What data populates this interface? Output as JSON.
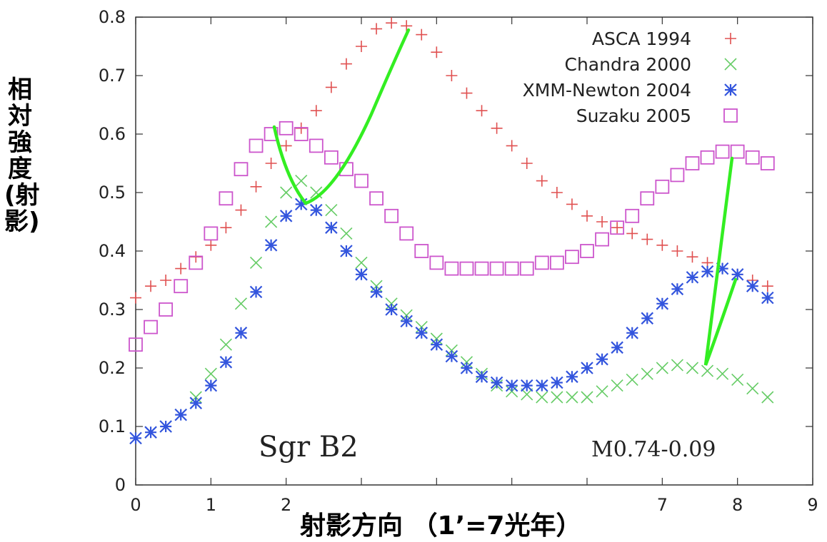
{
  "chart_data": {
    "type": "scatter",
    "xlabel": "射影方向 （1’=7光年）",
    "ylabel": "相対強度(射影)",
    "xlim": [
      0,
      9
    ],
    "ylim": [
      0,
      0.8
    ],
    "x_ticks": [
      "0",
      "1",
      "2",
      "",
      "",
      "",
      "",
      "7",
      "8",
      "9"
    ],
    "y_ticks": [
      "0",
      "0.1",
      "0.2",
      "0.3",
      "0.4",
      "0.5",
      "0.6",
      "0.7",
      "0.8"
    ],
    "legend_position": "top-right",
    "annotations": [
      "Sgr B2",
      "M0.74-0.09"
    ],
    "series": [
      {
        "name": "ASCA 1994",
        "marker": "plus",
        "color": "#e05050",
        "x": [
          0,
          0.2,
          0.4,
          0.6,
          0.8,
          1.0,
          1.2,
          1.4,
          1.6,
          1.8,
          2.0,
          2.2,
          2.4,
          2.6,
          2.8,
          3.0,
          3.2,
          3.4,
          3.6,
          3.8,
          4.0,
          4.2,
          4.4,
          4.6,
          4.8,
          5.0,
          5.2,
          5.4,
          5.6,
          5.8,
          6.0,
          6.2,
          6.4,
          6.6,
          6.8,
          7.0,
          7.2,
          7.4,
          7.6,
          7.8,
          8.0,
          8.2,
          8.4
        ],
        "y": [
          0.32,
          0.34,
          0.35,
          0.37,
          0.39,
          0.41,
          0.44,
          0.47,
          0.51,
          0.55,
          0.58,
          0.61,
          0.64,
          0.68,
          0.72,
          0.75,
          0.78,
          0.79,
          0.785,
          0.77,
          0.74,
          0.7,
          0.67,
          0.64,
          0.61,
          0.58,
          0.55,
          0.52,
          0.5,
          0.48,
          0.46,
          0.45,
          0.44,
          0.43,
          0.42,
          0.41,
          0.4,
          0.39,
          0.38,
          0.37,
          0.36,
          0.35,
          0.34
        ]
      },
      {
        "name": "Chandra 2000",
        "marker": "x",
        "color": "#66cc66",
        "x": [
          0,
          0.2,
          0.4,
          0.6,
          0.8,
          1.0,
          1.2,
          1.4,
          1.6,
          1.8,
          2.0,
          2.2,
          2.4,
          2.6,
          2.8,
          3.0,
          3.2,
          3.4,
          3.6,
          3.8,
          4.0,
          4.2,
          4.4,
          4.6,
          4.8,
          5.0,
          5.2,
          5.4,
          5.6,
          5.8,
          6.0,
          6.2,
          6.4,
          6.6,
          6.8,
          7.0,
          7.2,
          7.4,
          7.6,
          7.8,
          8.0,
          8.2,
          8.4
        ],
        "y": [
          0.08,
          0.09,
          0.1,
          0.12,
          0.15,
          0.19,
          0.24,
          0.31,
          0.38,
          0.45,
          0.5,
          0.52,
          0.5,
          0.47,
          0.43,
          0.38,
          0.34,
          0.31,
          0.29,
          0.27,
          0.25,
          0.23,
          0.21,
          0.19,
          0.17,
          0.16,
          0.155,
          0.15,
          0.15,
          0.15,
          0.15,
          0.16,
          0.17,
          0.18,
          0.19,
          0.2,
          0.205,
          0.2,
          0.195,
          0.19,
          0.18,
          0.165,
          0.15
        ]
      },
      {
        "name": "XMM-Newton 2004",
        "marker": "star",
        "color": "#3355dd",
        "x": [
          0,
          0.2,
          0.4,
          0.6,
          0.8,
          1.0,
          1.2,
          1.4,
          1.6,
          1.8,
          2.0,
          2.2,
          2.4,
          2.6,
          2.8,
          3.0,
          3.2,
          3.4,
          3.6,
          3.8,
          4.0,
          4.2,
          4.4,
          4.6,
          4.8,
          5.0,
          5.2,
          5.4,
          5.6,
          5.8,
          6.0,
          6.2,
          6.4,
          6.6,
          6.8,
          7.0,
          7.2,
          7.4,
          7.6,
          7.8,
          8.0,
          8.2,
          8.4
        ],
        "y": [
          0.08,
          0.09,
          0.1,
          0.12,
          0.14,
          0.17,
          0.21,
          0.26,
          0.33,
          0.41,
          0.46,
          0.48,
          0.47,
          0.44,
          0.4,
          0.36,
          0.33,
          0.3,
          0.28,
          0.26,
          0.24,
          0.22,
          0.2,
          0.185,
          0.175,
          0.17,
          0.17,
          0.17,
          0.175,
          0.185,
          0.2,
          0.215,
          0.235,
          0.26,
          0.285,
          0.31,
          0.335,
          0.355,
          0.365,
          0.37,
          0.36,
          0.34,
          0.32
        ]
      },
      {
        "name": "Suzaku 2005",
        "marker": "square",
        "color": "#cc55cc",
        "x": [
          0,
          0.2,
          0.4,
          0.6,
          0.8,
          1.0,
          1.2,
          1.4,
          1.6,
          1.8,
          2.0,
          2.2,
          2.4,
          2.6,
          2.8,
          3.0,
          3.2,
          3.4,
          3.6,
          3.8,
          4.0,
          4.2,
          4.4,
          4.6,
          4.8,
          5.0,
          5.2,
          5.4,
          5.6,
          5.8,
          6.0,
          6.2,
          6.4,
          6.6,
          6.8,
          7.0,
          7.2,
          7.4,
          7.6,
          7.8,
          8.0,
          8.2,
          8.4
        ],
        "y": [
          0.24,
          0.27,
          0.3,
          0.34,
          0.38,
          0.43,
          0.49,
          0.54,
          0.58,
          0.6,
          0.61,
          0.6,
          0.58,
          0.56,
          0.54,
          0.52,
          0.49,
          0.46,
          0.43,
          0.4,
          0.38,
          0.37,
          0.37,
          0.37,
          0.37,
          0.37,
          0.37,
          0.38,
          0.38,
          0.39,
          0.4,
          0.42,
          0.44,
          0.46,
          0.49,
          0.51,
          0.53,
          0.55,
          0.56,
          0.57,
          0.57,
          0.56,
          0.55
        ]
      }
    ]
  }
}
